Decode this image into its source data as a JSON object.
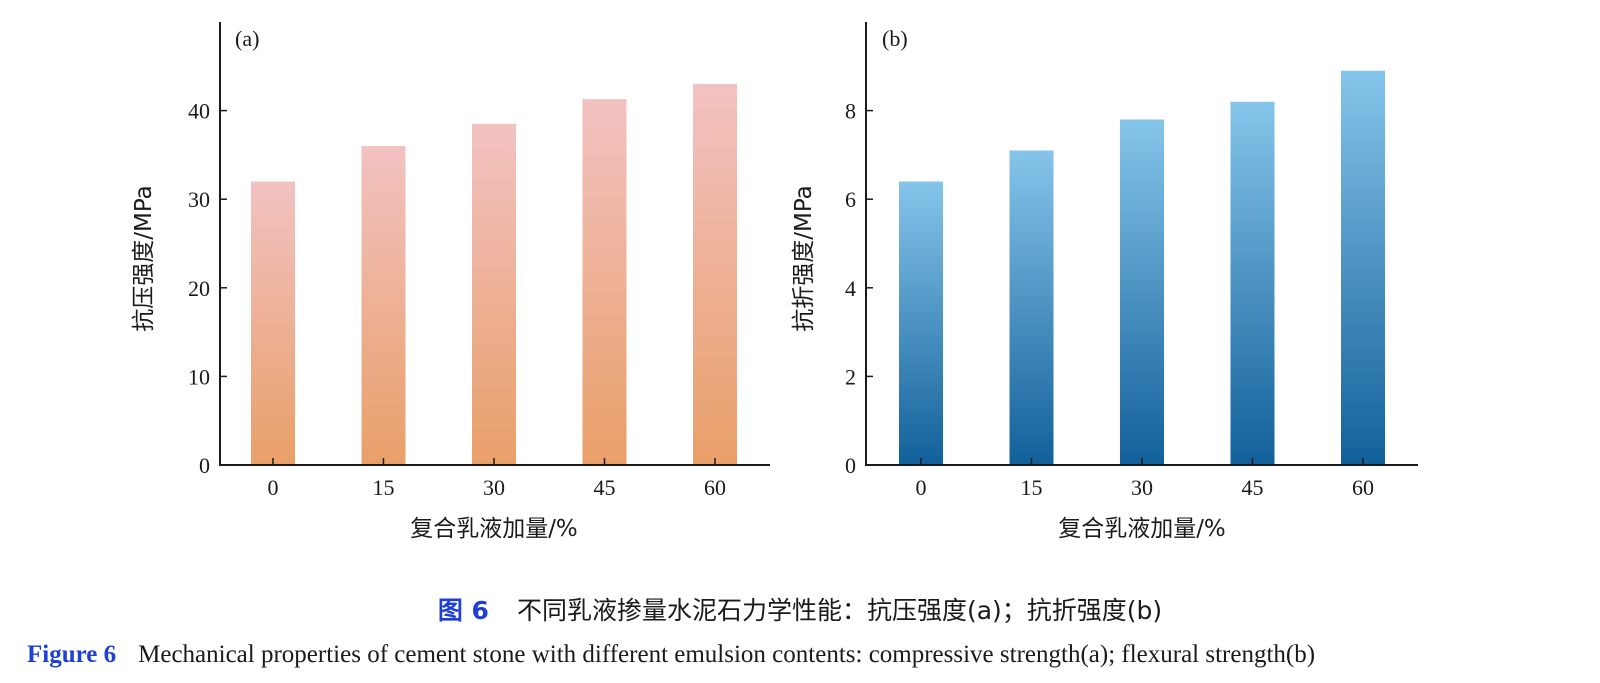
{
  "chart_data": [
    {
      "type": "bar",
      "panel_label": "(a)",
      "categories": [
        "0",
        "15",
        "30",
        "45",
        "60"
      ],
      "values": [
        32,
        36,
        38.5,
        41.3,
        43
      ],
      "ylabel": "抗压强度/MPa",
      "xlabel": "复合乳液加量/%",
      "ylim": [
        0,
        50
      ],
      "yticks": [
        0,
        10,
        20,
        30,
        40
      ],
      "grid": false,
      "gradient_top": "#f2c2c2",
      "gradient_bottom": "#e99f68"
    },
    {
      "type": "bar",
      "panel_label": "(b)",
      "categories": [
        "0",
        "15",
        "30",
        "45",
        "60"
      ],
      "values": [
        6.4,
        7.1,
        7.8,
        8.2,
        8.9
      ],
      "ylabel": "抗折强度/MPa",
      "xlabel": "复合乳液加量/%",
      "ylim": [
        0,
        10
      ],
      "yticks": [
        0,
        2,
        4,
        6,
        8
      ],
      "grid": false,
      "gradient_top": "#86c5ea",
      "gradient_bottom": "#12609a"
    }
  ],
  "caption": {
    "zh_label": "图 6",
    "zh_text": "不同乳液掺量水泥石力学性能：抗压强度(a)；抗折强度(b)",
    "en_label": "Figure 6",
    "en_text": "Mechanical properties of cement stone with different emulsion contents: compressive strength(a); flexural strength(b)"
  }
}
